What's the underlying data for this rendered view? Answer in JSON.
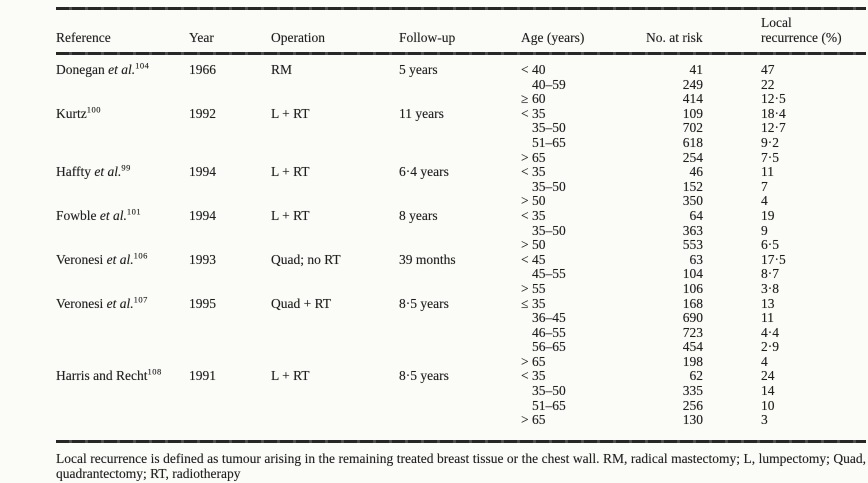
{
  "page": {
    "background": "#fbfbf8",
    "ink": "#1f1f1f",
    "rule_color": "#2b2b2b"
  },
  "table": {
    "columns": [
      "Reference",
      "Year",
      "Operation",
      "Follow-up",
      "Age (years)",
      "No. at risk",
      "Local\nrecurrence (%)"
    ],
    "groups": [
      {
        "name": "Donegan",
        "etal": "et al.",
        "sup": "104",
        "year": "1966",
        "operation": "RM",
        "follow_up": "5 years",
        "rows": [
          {
            "age": "<40",
            "n": "41",
            "recurrence": "47"
          },
          {
            "age": "40–59",
            "n": "249",
            "recurrence": "22"
          },
          {
            "age": "≥60",
            "n": "414",
            "recurrence": "12·5"
          }
        ]
      },
      {
        "name": "Kurtz",
        "etal": "",
        "sup": "100",
        "year": "1992",
        "operation": "L + RT",
        "follow_up": "11 years",
        "rows": [
          {
            "age": "<35",
            "n": "109",
            "recurrence": "18·4"
          },
          {
            "age": "35–50",
            "n": "702",
            "recurrence": "12·7"
          },
          {
            "age": "51–65",
            "n": "618",
            "recurrence": "9·2"
          },
          {
            "age": ">65",
            "n": "254",
            "recurrence": "7·5"
          }
        ]
      },
      {
        "name": "Haffty",
        "etal": "et al.",
        "sup": "99",
        "year": "1994",
        "operation": "L + RT",
        "follow_up": "6·4 years",
        "rows": [
          {
            "age": "<35",
            "n": "46",
            "recurrence": "11"
          },
          {
            "age": "35–50",
            "n": "152",
            "recurrence": "7"
          },
          {
            "age": ">50",
            "n": "350",
            "recurrence": "4"
          }
        ]
      },
      {
        "name": "Fowble",
        "etal": "et al.",
        "sup": "101",
        "year": "1994",
        "operation": "L + RT",
        "follow_up": "8 years",
        "rows": [
          {
            "age": "<35",
            "n": "64",
            "recurrence": "19"
          },
          {
            "age": "35–50",
            "n": "363",
            "recurrence": "9"
          },
          {
            "age": ">50",
            "n": "553",
            "recurrence": "6·5"
          }
        ]
      },
      {
        "name": "Veronesi",
        "etal": "et al.",
        "sup": "106",
        "year": "1993",
        "operation": "Quad; no RT",
        "follow_up": "39 months",
        "rows": [
          {
            "age": "<45",
            "n": "63",
            "recurrence": "17·5"
          },
          {
            "age": "45–55",
            "n": "104",
            "recurrence": "8·7"
          },
          {
            "age": ">55",
            "n": "106",
            "recurrence": "3·8"
          }
        ]
      },
      {
        "name": "Veronesi",
        "etal": "et al.",
        "sup": "107",
        "year": "1995",
        "operation": "Quad + RT",
        "follow_up": "8·5 years",
        "rows": [
          {
            "age": "≤35",
            "n": "168",
            "recurrence": "13"
          },
          {
            "age": "36–45",
            "n": "690",
            "recurrence": "11"
          },
          {
            "age": "46–55",
            "n": "723",
            "recurrence": "4·4"
          },
          {
            "age": "56–65",
            "n": "454",
            "recurrence": "2·9"
          },
          {
            "age": ">65",
            "n": "198",
            "recurrence": "4"
          }
        ]
      },
      {
        "name": "Harris and Recht",
        "etal": "",
        "sup": "108",
        "year": "1991",
        "operation": "L + RT",
        "follow_up": "8·5 years",
        "rows": [
          {
            "age": "<35",
            "n": "62",
            "recurrence": "24"
          },
          {
            "age": "35–50",
            "n": "335",
            "recurrence": "14"
          },
          {
            "age": "51–65",
            "n": "256",
            "recurrence": "10"
          },
          {
            "age": ">65",
            "n": "130",
            "recurrence": "3"
          }
        ]
      }
    ]
  },
  "footnote": "Local recurrence is defined as tumour arising in the remaining treated breast tissue or the chest wall. RM, radical mastectomy; L, lumpectomy; Quad, quadrantectomy; RT, radiotherapy"
}
